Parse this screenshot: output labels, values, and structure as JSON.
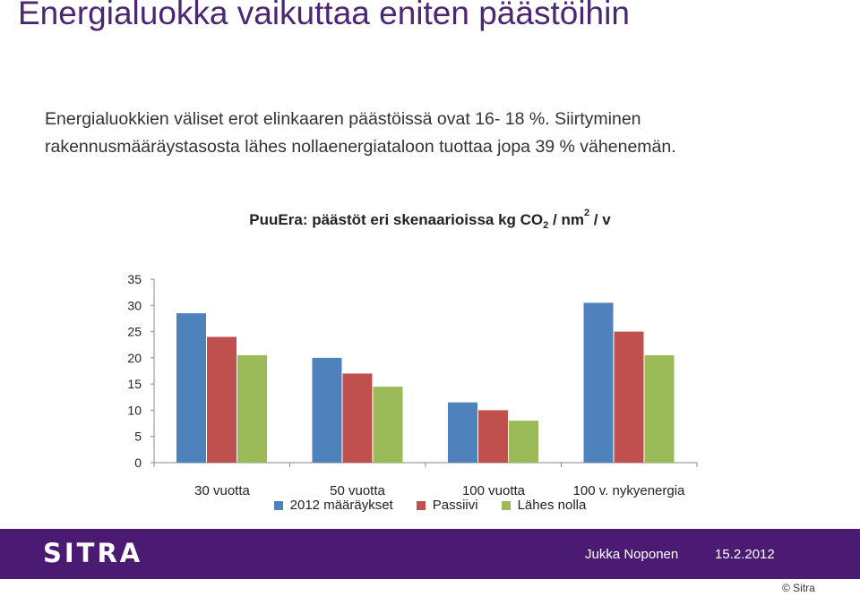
{
  "slide": {
    "title": "Energialuokka vaikuttaa eniten päästöihin",
    "intro_line1": "Energialuokkien väliset erot elinkaaren päästöissä ovat 16- 18 %. Siirtyminen",
    "intro_line2": "rakennusmääräystasosta lähes nollaenergiataloon tuottaa jopa 39 % vähenemän."
  },
  "chart_title": {
    "main": "PuuEra: päästöt eri skenaarioissa kg CO",
    "sub": "2",
    "mid": " / nm",
    "sup": "2",
    "end": " / v"
  },
  "chart_data": {
    "type": "bar",
    "categories": [
      "30 vuotta",
      "50 vuotta",
      "100 vuotta",
      "100 v. nykyenergia"
    ],
    "series": [
      {
        "name": "2012 määräykset",
        "color": "#4f81bd",
        "values": [
          28.5,
          20,
          11.5,
          30.5
        ]
      },
      {
        "name": "Passiivi",
        "color": "#c0504d",
        "values": [
          24,
          17,
          10,
          25
        ]
      },
      {
        "name": "Lähes nolla",
        "color": "#9bbb59",
        "values": [
          20.5,
          14.5,
          8,
          20.5
        ]
      }
    ],
    "ylim": [
      0,
      35
    ],
    "yticks": [
      "0",
      "5",
      "10",
      "15",
      "20",
      "25",
      "30",
      "35"
    ],
    "xlabel": "",
    "ylabel": "",
    "grid": false,
    "legend": "bottom"
  },
  "footer": {
    "logo_text": "SITRA",
    "author": "Jukka Noponen",
    "date": "15.2.2012",
    "copyright": "© Sitra",
    "background": "#4b1b74"
  }
}
